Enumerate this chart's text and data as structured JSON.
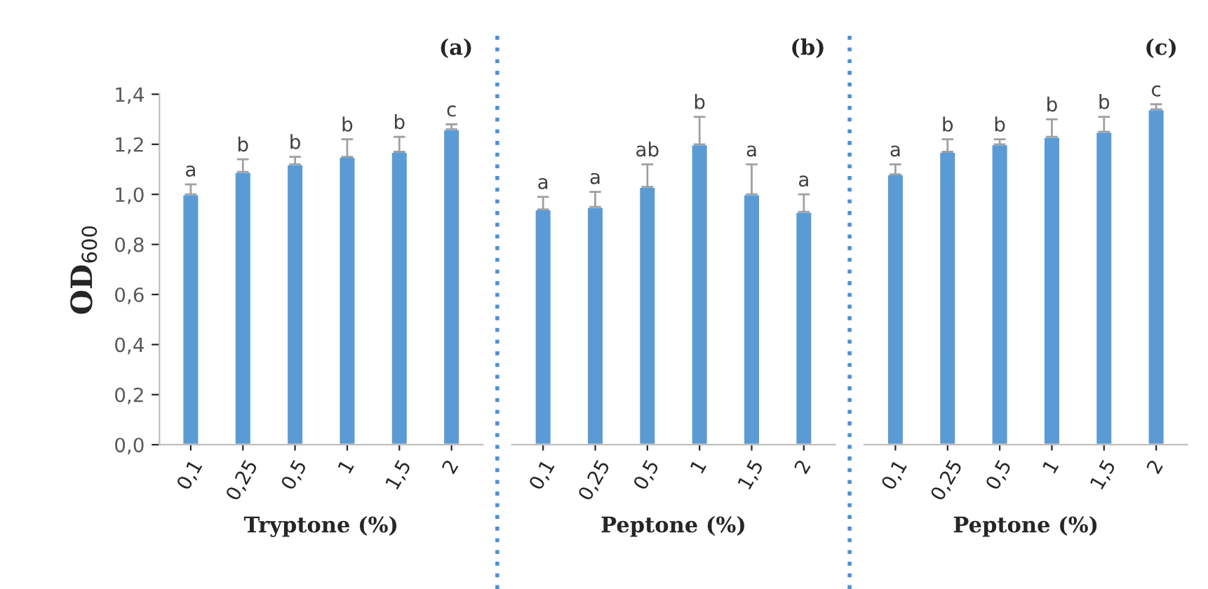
{
  "chart_data": [
    {
      "type": "bar",
      "categories": [
        "0,1",
        "0,25",
        "0,5",
        "1",
        "1,5",
        "2"
      ],
      "values": [
        1.0,
        1.09,
        1.12,
        1.15,
        1.17,
        1.26
      ],
      "errors": [
        [
          1.0,
          1.04
        ],
        [
          1.09,
          1.14
        ],
        [
          1.12,
          1.15
        ],
        [
          1.15,
          1.22
        ],
        [
          1.17,
          1.23
        ],
        [
          1.26,
          1.28
        ]
      ],
      "color": "#5b9bd5",
      "xlabel": "Tryptone (%)",
      "ylabel": "OD$_{600}$",
      "ylim": [
        0,
        1.4
      ],
      "yticks": [
        {
          "value": 0,
          "label": "0,0"
        },
        {
          "value": 0.2,
          "label": "0,2"
        },
        {
          "value": 0.4,
          "label": "0,4"
        },
        {
          "value": 0.6,
          "label": "0,6"
        },
        {
          "value": 0.8,
          "label": "0,8"
        },
        {
          "value": 1.0,
          "label": "1,0"
        },
        {
          "value": 1.2,
          "label": "1,2"
        },
        {
          "value": 1.4,
          "label": "1,4"
        }
      ],
      "grid": false,
      "annotations": [
        "(a)",
        {
          "text": "a",
          "x": "0,1",
          "y": 1.04
        },
        {
          "text": "b",
          "x": "0,25",
          "y": 1.14
        },
        {
          "text": "b",
          "x": "0,5",
          "y": 1.15
        },
        {
          "text": "b",
          "x": "1",
          "y": 1.22
        },
        {
          "text": "b",
          "x": "1,5",
          "y": 1.23
        },
        {
          "text": "c",
          "x": "2",
          "y": 1.28
        }
      ]
    },
    {
      "type": "bar",
      "categories": [
        "0,1",
        "0,25",
        "0,5",
        "1",
        "1,5",
        "2"
      ],
      "values": [
        0.94,
        0.95,
        1.03,
        1.2,
        1.0,
        0.93
      ],
      "errors": [
        [
          0.94,
          0.99
        ],
        [
          0.95,
          1.01
        ],
        [
          1.03,
          1.12
        ],
        [
          1.2,
          1.31
        ],
        [
          1.0,
          1.12
        ],
        [
          0.93,
          1.0
        ]
      ],
      "color": "#5b9bd5",
      "xlabel": "Peptone (%)",
      "ylim": [
        0,
        1.4
      ],
      "tick_labels": "x",
      "grid": false,
      "annotations": [
        "(b)",
        {
          "text": "a",
          "x": "0,1",
          "y": 0.99
        },
        {
          "text": "a",
          "x": "0,25",
          "y": 1.01
        },
        {
          "text": "ab",
          "x": "0,5",
          "y": 1.12
        },
        {
          "text": "b",
          "x": "1",
          "y": 1.31
        },
        {
          "text": "a",
          "x": "1,5",
          "y": 1.12
        },
        {
          "text": "a",
          "x": "2",
          "y": 1.0
        }
      ]
    },
    {
      "type": "bar",
      "categories": [
        "0,1",
        "0,25",
        "0,5",
        "1",
        "1,5",
        "2"
      ],
      "values": [
        1.08,
        1.17,
        1.2,
        1.23,
        1.25,
        1.34
      ],
      "errors": [
        [
          1.08,
          1.12
        ],
        [
          1.17,
          1.22
        ],
        [
          1.2,
          1.22
        ],
        [
          1.23,
          1.3
        ],
        [
          1.25,
          1.31
        ],
        [
          1.34,
          1.36
        ]
      ],
      "color": "#5b9bd5",
      "xlabel": "Peptone (%)",
      "ylim": [
        0,
        1.4
      ],
      "tick_labels": "x",
      "grid": false,
      "annotations": [
        "(c)",
        {
          "text": "a",
          "x": "0,1",
          "y": 1.12
        },
        {
          "text": "b",
          "x": "0,25",
          "y": 1.22
        },
        {
          "text": "b",
          "x": "0,5",
          "y": 1.22
        },
        {
          "text": "b",
          "x": "1",
          "y": 1.3
        },
        {
          "text": "b",
          "x": "1,5",
          "y": 1.31
        },
        {
          "text": "c",
          "x": "2",
          "y": 1.36
        }
      ]
    }
  ]
}
